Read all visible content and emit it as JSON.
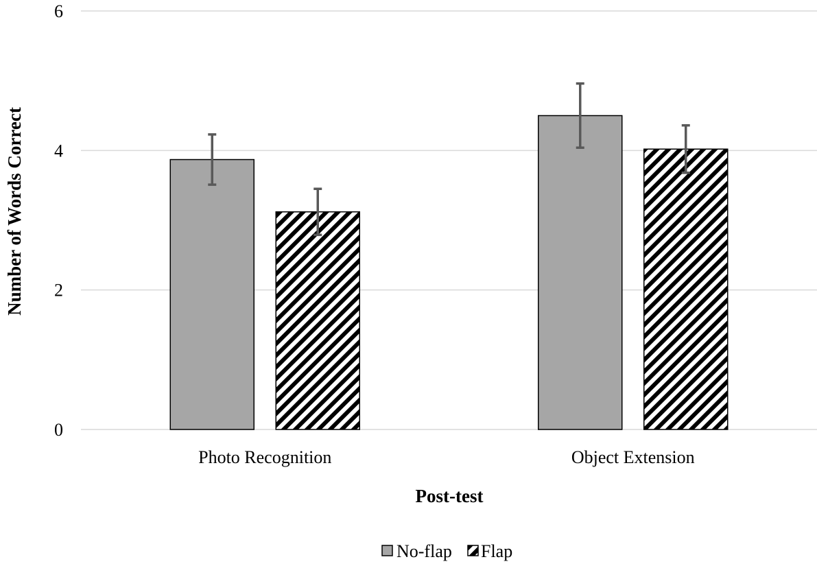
{
  "chart_data": {
    "type": "bar",
    "categories": [
      "Photo Recognition",
      "Object Extension"
    ],
    "series": [
      {
        "name": "No-flap",
        "values": [
          3.87,
          4.5
        ],
        "error": [
          0.36,
          0.46
        ],
        "color": "#a6a6a6",
        "pattern": "solid"
      },
      {
        "name": "Flap",
        "values": [
          3.12,
          4.02
        ],
        "error": [
          0.33,
          0.34
        ],
        "color": "#000000",
        "pattern": "diagonal-hatch"
      }
    ],
    "xlabel": "Post-test",
    "ylabel": "Number of Words Correct",
    "ylim": [
      0,
      6
    ],
    "yticks": [
      "0",
      "2",
      "4",
      "6"
    ],
    "grid": true,
    "legend_position": "bottom-center",
    "colors": {
      "gridline": "#d9d9d9",
      "errorbar": "#595959",
      "bar_outline": "#000000"
    }
  }
}
